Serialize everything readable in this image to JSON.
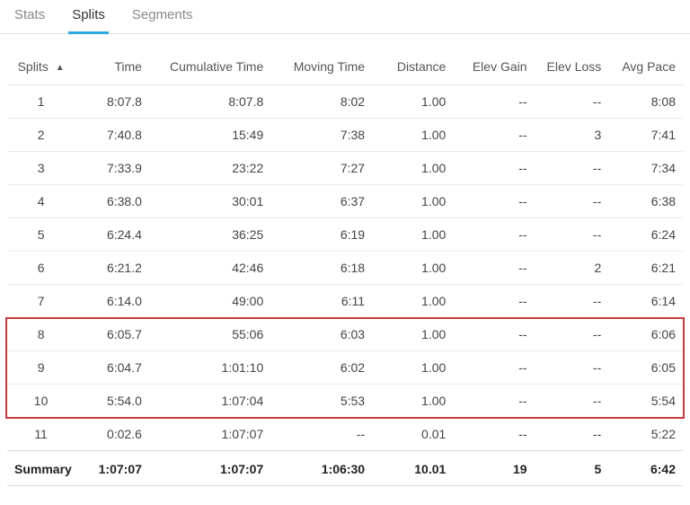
{
  "tabs": {
    "items": [
      {
        "label": "Stats",
        "active": false
      },
      {
        "label": "Splits",
        "active": true
      },
      {
        "label": "Segments",
        "active": false
      }
    ]
  },
  "table": {
    "columns": {
      "splits": "Splits",
      "time": "Time",
      "cumulative": "Cumulative Time",
      "moving": "Moving Time",
      "distance": "Distance",
      "elev_gain": "Elev Gain",
      "elev_loss": "Elev Loss",
      "avg_pace": "Avg Pace"
    },
    "sort_indicator": "▲",
    "rows": [
      {
        "split": "1",
        "time": "8:07.8",
        "cum": "8:07.8",
        "moving": "8:02",
        "dist": "1.00",
        "gain": "--",
        "loss": "--",
        "pace": "8:08"
      },
      {
        "split": "2",
        "time": "7:40.8",
        "cum": "15:49",
        "moving": "7:38",
        "dist": "1.00",
        "gain": "--",
        "loss": "3",
        "pace": "7:41"
      },
      {
        "split": "3",
        "time": "7:33.9",
        "cum": "23:22",
        "moving": "7:27",
        "dist": "1.00",
        "gain": "--",
        "loss": "--",
        "pace": "7:34"
      },
      {
        "split": "4",
        "time": "6:38.0",
        "cum": "30:01",
        "moving": "6:37",
        "dist": "1.00",
        "gain": "--",
        "loss": "--",
        "pace": "6:38"
      },
      {
        "split": "5",
        "time": "6:24.4",
        "cum": "36:25",
        "moving": "6:19",
        "dist": "1.00",
        "gain": "--",
        "loss": "--",
        "pace": "6:24"
      },
      {
        "split": "6",
        "time": "6:21.2",
        "cum": "42:46",
        "moving": "6:18",
        "dist": "1.00",
        "gain": "--",
        "loss": "2",
        "pace": "6:21"
      },
      {
        "split": "7",
        "time": "6:14.0",
        "cum": "49:00",
        "moving": "6:11",
        "dist": "1.00",
        "gain": "--",
        "loss": "--",
        "pace": "6:14"
      },
      {
        "split": "8",
        "time": "6:05.7",
        "cum": "55:06",
        "moving": "6:03",
        "dist": "1.00",
        "gain": "--",
        "loss": "--",
        "pace": "6:06"
      },
      {
        "split": "9",
        "time": "6:04.7",
        "cum": "1:01:10",
        "moving": "6:02",
        "dist": "1.00",
        "gain": "--",
        "loss": "--",
        "pace": "6:05"
      },
      {
        "split": "10",
        "time": "5:54.0",
        "cum": "1:07:04",
        "moving": "5:53",
        "dist": "1.00",
        "gain": "--",
        "loss": "--",
        "pace": "5:54"
      },
      {
        "split": "11",
        "time": "0:02.6",
        "cum": "1:07:07",
        "moving": "--",
        "dist": "0.01",
        "gain": "--",
        "loss": "--",
        "pace": "5:22"
      }
    ],
    "summary": {
      "label": "Summary",
      "time": "1:07:07",
      "cum": "1:07:07",
      "moving": "1:06:30",
      "dist": "10.01",
      "gain": "19",
      "loss": "5",
      "pace": "6:42"
    }
  },
  "highlight": {
    "border_color": "#c43a3a",
    "row_start": 8,
    "row_end": 10
  },
  "colors": {
    "tab_active": "#2aa7de",
    "border": "#e0e0e0",
    "text": "#444"
  }
}
